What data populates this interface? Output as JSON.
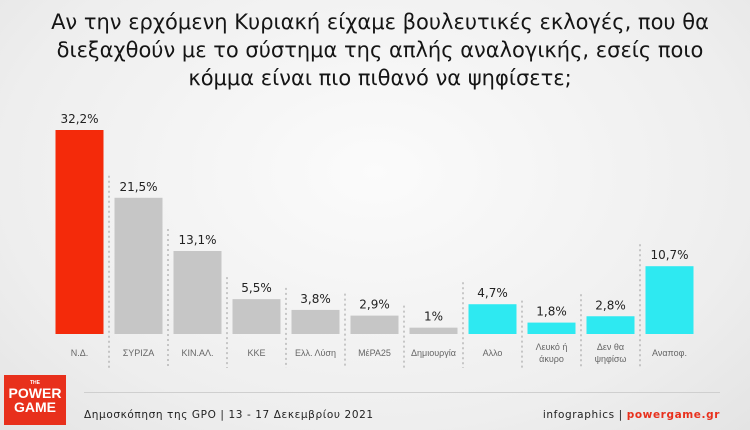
{
  "title": "Αν την ερχόμενη Κυριακή είχαμε βουλευτικές εκλογές, που θα διεξαχθούν με το σύστημα της απλής αναλογικής, εσείς ποιο κόμμα είναι πιο πιθανό να ψηφίσετε;",
  "chart_data": {
    "type": "bar",
    "categories": [
      "Ν.Δ.",
      "ΣΥΡΙΖΑ",
      "ΚΙΝ.ΑΛ.",
      "ΚΚΕ",
      "Ελλ. Λύση",
      "ΜέΡΑ25",
      "Δημιουργία",
      "Αλλο",
      "Λευκό ή άκυρο",
      "Δεν θα ψηφίσω",
      "Αναποφ."
    ],
    "values": [
      32.2,
      21.5,
      13.1,
      5.5,
      3.8,
      2.9,
      1,
      4.7,
      1.8,
      2.8,
      10.7
    ],
    "data_labels": [
      "32,2%",
      "21,5%",
      "13,1%",
      "5,5%",
      "3,8%",
      "2,9%",
      "1%",
      "4,7%",
      "1,8%",
      "2,8%",
      "10,7%"
    ],
    "colors": [
      "#f42a0a",
      "#c6c6c6",
      "#c6c6c6",
      "#c6c6c6",
      "#c6c6c6",
      "#c6c6c6",
      "#c6c6c6",
      "#2ee9f1",
      "#2ee9f1",
      "#2ee9f1",
      "#2ee9f1"
    ],
    "ylim": [
      0,
      32.2
    ],
    "grid": false
  },
  "footer": {
    "source": "Δημοσκόπηση της GPO | 13 - 17 Δεκεμβρίου 2021",
    "credit_prefix": "infographics | ",
    "credit_site": "powergame.gr"
  },
  "logo": {
    "small": "THE",
    "line1": "POWER",
    "line2": "GAME"
  }
}
